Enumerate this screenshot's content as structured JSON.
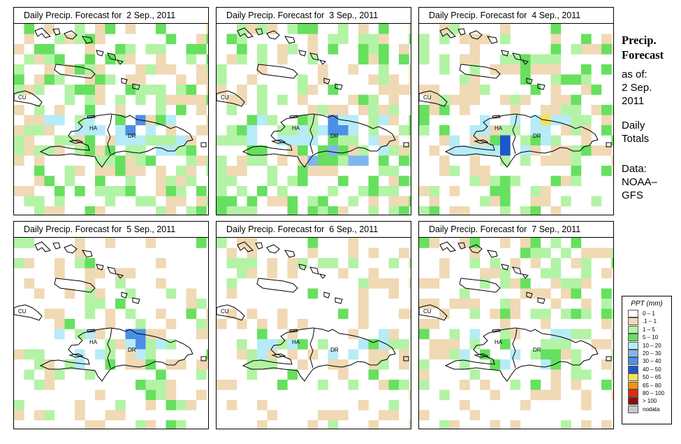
{
  "side_text": {
    "title_line1": "Precip.",
    "title_line2": "Forecast",
    "asof": "as of:",
    "date_line1": "2 Sep.",
    "date_line2": "2011",
    "daily_line1": "Daily",
    "daily_line2": "Totals",
    "data_line1": "Data:",
    "data_line2": "NOAA–",
    "data_line3": "GFS"
  },
  "panels": [
    {
      "title": "Daily Precip. Forecast for  2 Sep., 2011"
    },
    {
      "title": "Daily Precip. Forecast for  3 Sep., 2011"
    },
    {
      "title": "Daily Precip. Forecast for  4 Sep., 2011"
    },
    {
      "title": "Daily Precip. Forecast for  5 Sep., 2011"
    },
    {
      "title": "Daily Precip. Forecast for  6 Sep., 2011"
    },
    {
      "title": "Daily Precip. Forecast for  7 Sep., 2011"
    }
  ],
  "map_labels": {
    "cuba": "CU",
    "haiti": "HA",
    "dr": "DR"
  },
  "legend": {
    "title": "PPT (mm)",
    "items": [
      {
        "label": "0 – 1",
        "color": "#ffffff"
      },
      {
        "label": ".1 – 1",
        "color": "#f0d9b5"
      },
      {
        "label": "1 – 5",
        "color": "#b3f3a6"
      },
      {
        "label": "5 – 10",
        "color": "#66e05e"
      },
      {
        "label": "10 – 20",
        "color": "#b6ecf7"
      },
      {
        "label": "20 – 30",
        "color": "#7fb6ee"
      },
      {
        "label": "30 – 40",
        "color": "#4d8fe6"
      },
      {
        "label": "40 – 50",
        "color": "#1d57c9"
      },
      {
        "label": "50 – 65",
        "color": "#f6e15a"
      },
      {
        "label": "65 – 80",
        "color": "#f7920a"
      },
      {
        "label": "80 – 100",
        "color": "#e02c12"
      },
      {
        "label": "> 100",
        "color": "#8a1010"
      },
      {
        "label": "nodata",
        "color": "#c8c8c8"
      }
    ]
  }
}
